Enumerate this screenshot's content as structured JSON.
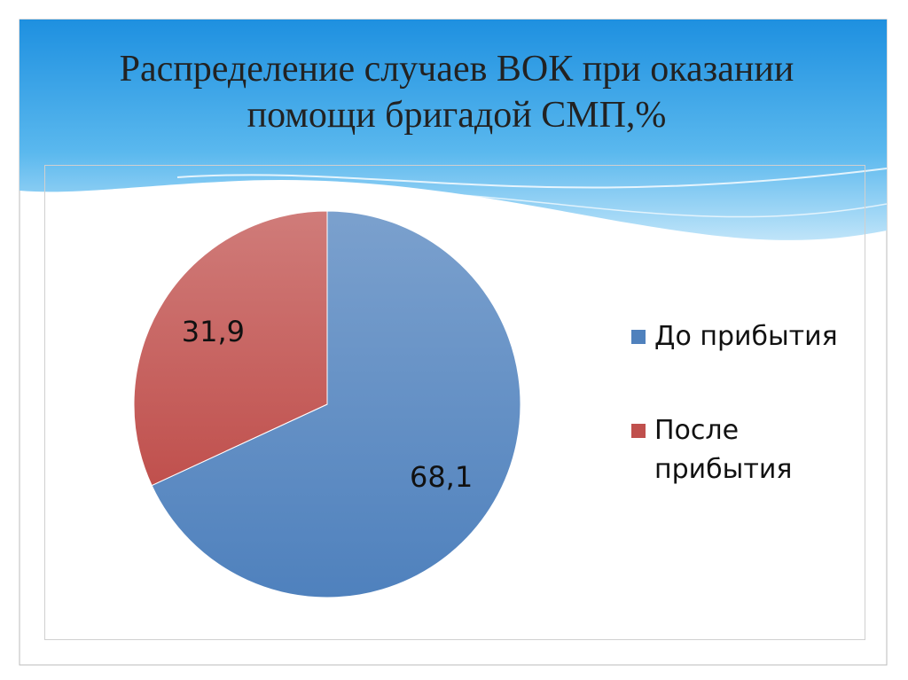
{
  "chart_data": {
    "type": "pie",
    "title": "Распределение случаев ВОК при оказании помощи бригадой СМП,%",
    "categories": [
      "До прибытия",
      "После прибытия"
    ],
    "values": [
      68.1,
      31.9
    ],
    "value_labels": [
      "68,1",
      "31,9"
    ],
    "colors": [
      "#4f81bd",
      "#c0504d"
    ],
    "legend": "right"
  }
}
